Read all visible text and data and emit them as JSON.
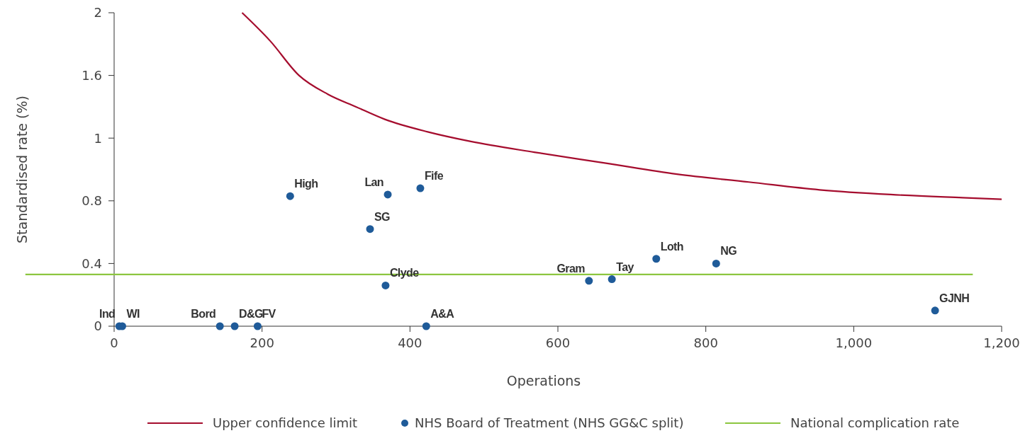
{
  "chart_data": {
    "type": "scatter",
    "xlabel": "Operations",
    "ylabel": "Standardised rate (%)",
    "xlim": [
      0,
      1200
    ],
    "xticks": [
      0,
      200,
      400,
      600,
      800,
      {
        "value": 1000,
        "label": "1,000"
      },
      {
        "value": 1200,
        "label": "1,200"
      }
    ],
    "ylim": [
      0,
      2
    ],
    "yticks": [
      0,
      0.4,
      0.8,
      {
        "value": 1.2,
        "label": "1"
      },
      1.6,
      2
    ],
    "grid": false,
    "legend": "bottom",
    "marker": "circle",
    "series": [
      {
        "name": "Upper confidence limit",
        "type": "line",
        "color": "#a50d2e",
        "marker": "none",
        "x": [
          173,
          211,
          250,
          289,
          327,
          366,
          424,
          481,
          568,
          665,
          761,
          858,
          954,
          1050,
          1147,
          1200
        ],
        "values": [
          2.0,
          1.82,
          1.6,
          1.48,
          1.4,
          1.32,
          1.24,
          1.18,
          1.11,
          1.04,
          0.97,
          0.92,
          0.87,
          0.84,
          0.82,
          0.81
        ]
      },
      {
        "name": "NHS Board of Treatment (NHS GG&C split)",
        "color": "#1f5b99",
        "x": [
          7,
          11,
          143,
          163,
          194,
          238,
          370,
          414,
          346,
          367,
          422,
          642,
          673,
          733,
          814,
          1110
        ],
        "values": [
          0,
          0,
          0,
          0,
          0,
          0.83,
          0.84,
          0.88,
          0.62,
          0.26,
          0,
          0.29,
          0.3,
          0.43,
          0.4,
          0.1
        ]
      }
    ],
    "ref_lines": [
      {
        "axis": "y",
        "value": 0.33,
        "label": "National complication rate",
        "color": "#8cc63f"
      }
    ],
    "annotations": [
      {
        "text": "Ind",
        "x": 7,
        "y": 0
      },
      {
        "text": "WI",
        "x": 11,
        "y": 0
      },
      {
        "text": "Bord",
        "x": 143,
        "y": 0
      },
      {
        "text": "D&G",
        "x": 163,
        "y": 0
      },
      {
        "text": "FV",
        "x": 194,
        "y": 0
      },
      {
        "text": "High",
        "x": 238,
        "y": 0.83
      },
      {
        "text": "Lan",
        "x": 370,
        "y": 0.84
      },
      {
        "text": "Fife",
        "x": 414,
        "y": 0.88
      },
      {
        "text": "SG",
        "x": 346,
        "y": 0.62
      },
      {
        "text": "Clyde",
        "x": 367,
        "y": 0.26
      },
      {
        "text": "A&A",
        "x": 422,
        "y": 0
      },
      {
        "text": "Gram",
        "x": 642,
        "y": 0.29
      },
      {
        "text": "Tay",
        "x": 673,
        "y": 0.3
      },
      {
        "text": "Loth",
        "x": 733,
        "y": 0.43
      },
      {
        "text": "NG",
        "x": 814,
        "y": 0.4
      },
      {
        "text": "GJNH",
        "x": 1110,
        "y": 0.1
      }
    ]
  }
}
